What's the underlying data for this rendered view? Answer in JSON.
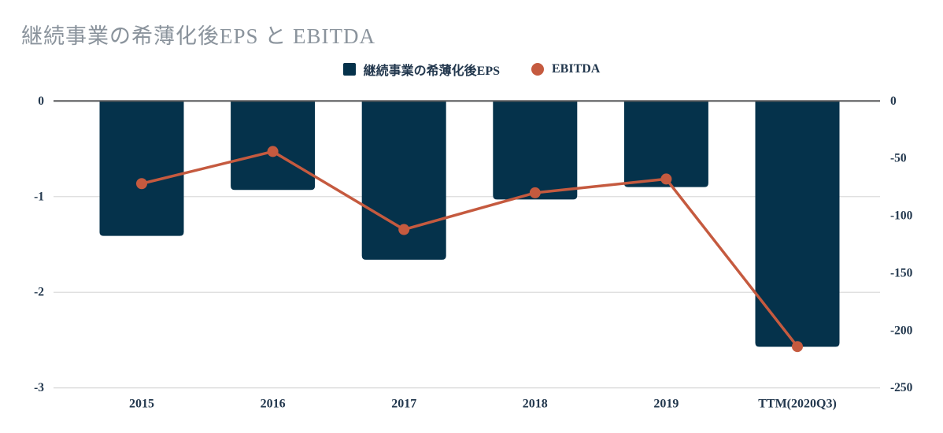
{
  "title": "継続事業の希薄化後EPS と EBITDA",
  "colors": {
    "bar": "#05324B",
    "line": "#C55A3F",
    "title_text": "#8A939C",
    "axis_text": "#23384E",
    "grid_line": "#DCDCDC",
    "zero_line": "#58595B"
  },
  "legend": {
    "items": [
      {
        "label": "継続事業の希薄化後EPS",
        "marker": "square",
        "color": "#05324B"
      },
      {
        "label": "EBITDA",
        "marker": "circle",
        "color": "#C55A3F"
      }
    ]
  },
  "chart_data": {
    "type": "bar",
    "subtype": "bar+line dual-axis combo",
    "title": "継続事業の希薄化後EPS と EBITDA",
    "categories": [
      "2015",
      "2016",
      "2017",
      "2018",
      "2019",
      "TTM(2020Q3)"
    ],
    "series": [
      {
        "name": "継続事業の希薄化後EPS",
        "type": "bar",
        "axis": "left",
        "color": "#05324B",
        "values": [
          -1.41,
          -0.93,
          -1.66,
          -1.03,
          -0.9,
          -2.57
        ]
      },
      {
        "name": "EBITDA",
        "type": "line",
        "axis": "right",
        "color": "#C55A3F",
        "values": [
          -72,
          -44,
          -112,
          -80,
          -68,
          -214
        ]
      }
    ],
    "left_axis": {
      "ticks": [
        0,
        -1,
        -2,
        -3
      ],
      "range": [
        0,
        -3
      ]
    },
    "right_axis": {
      "ticks": [
        0,
        -50,
        -100,
        -150,
        -200,
        -250
      ],
      "range": [
        0,
        -250
      ]
    },
    "grid": true,
    "legend_position": "top-center",
    "xlabel": "",
    "ylabel_left": "",
    "ylabel_right": ""
  }
}
